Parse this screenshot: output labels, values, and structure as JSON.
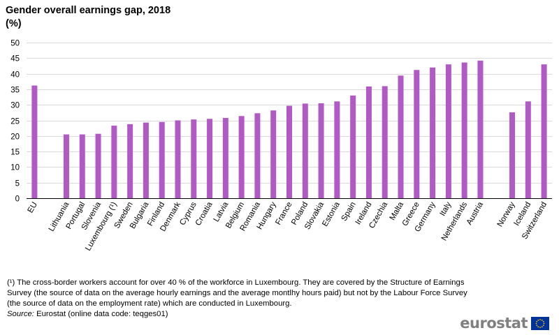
{
  "header": {
    "title": "Gender overall earnings gap, 2018",
    "unit": "(%)"
  },
  "chart_data": {
    "type": "bar",
    "title": "Gender overall earnings gap, 2018",
    "ylabel": "(%)",
    "xlabel": "",
    "ylim": [
      0,
      50
    ],
    "yticks": [
      0,
      5,
      10,
      15,
      20,
      25,
      30,
      35,
      40,
      45,
      50
    ],
    "grid": true,
    "bar_color": "#b15ac6",
    "categories": [
      "EU",
      "",
      "Lithuania",
      "Portugal",
      "Slovenia",
      "Luxembourg (¹)",
      "Sweden",
      "Bulgaria",
      "Finland",
      "Denmark",
      "Cyprus",
      "Croatia",
      "Latvia",
      "Belgium",
      "Romania",
      "Hungary",
      "France",
      "Poland",
      "Slovakia",
      "Estonia",
      "Spain",
      "Ireland",
      "Czechia",
      "Malta",
      "Greece",
      "Germany",
      "Italy",
      "Netherlands",
      "Austria",
      "",
      "Norway",
      "Iceland",
      "Switzerland"
    ],
    "values": [
      36.2,
      null,
      20.5,
      20.5,
      20.7,
      23.3,
      23.8,
      24.3,
      24.5,
      25.0,
      25.3,
      25.5,
      25.8,
      26.4,
      27.3,
      28.2,
      29.7,
      30.4,
      30.5,
      31.1,
      33.0,
      35.9,
      36.0,
      39.4,
      41.2,
      42.0,
      43.0,
      43.6,
      44.2,
      null,
      27.6,
      31.1,
      43.0
    ]
  },
  "footnote": "(¹) The cross-border workers account for over 40 % of the workforce in Luxembourg. They are covered by the Structure of Earnings Survey (the source of data on the average hourly earnings and the average montlhy hours paid) but not by the Labour Force Survey (the source of data on the employment rate) which are conducted in Luxembourg.",
  "source": {
    "label": "Source:",
    "text": " Eurostat (online data code: teqges01)"
  },
  "logo": {
    "text": "eurostat",
    "flag_color": "#003399",
    "star_color": "#ffcc00"
  }
}
